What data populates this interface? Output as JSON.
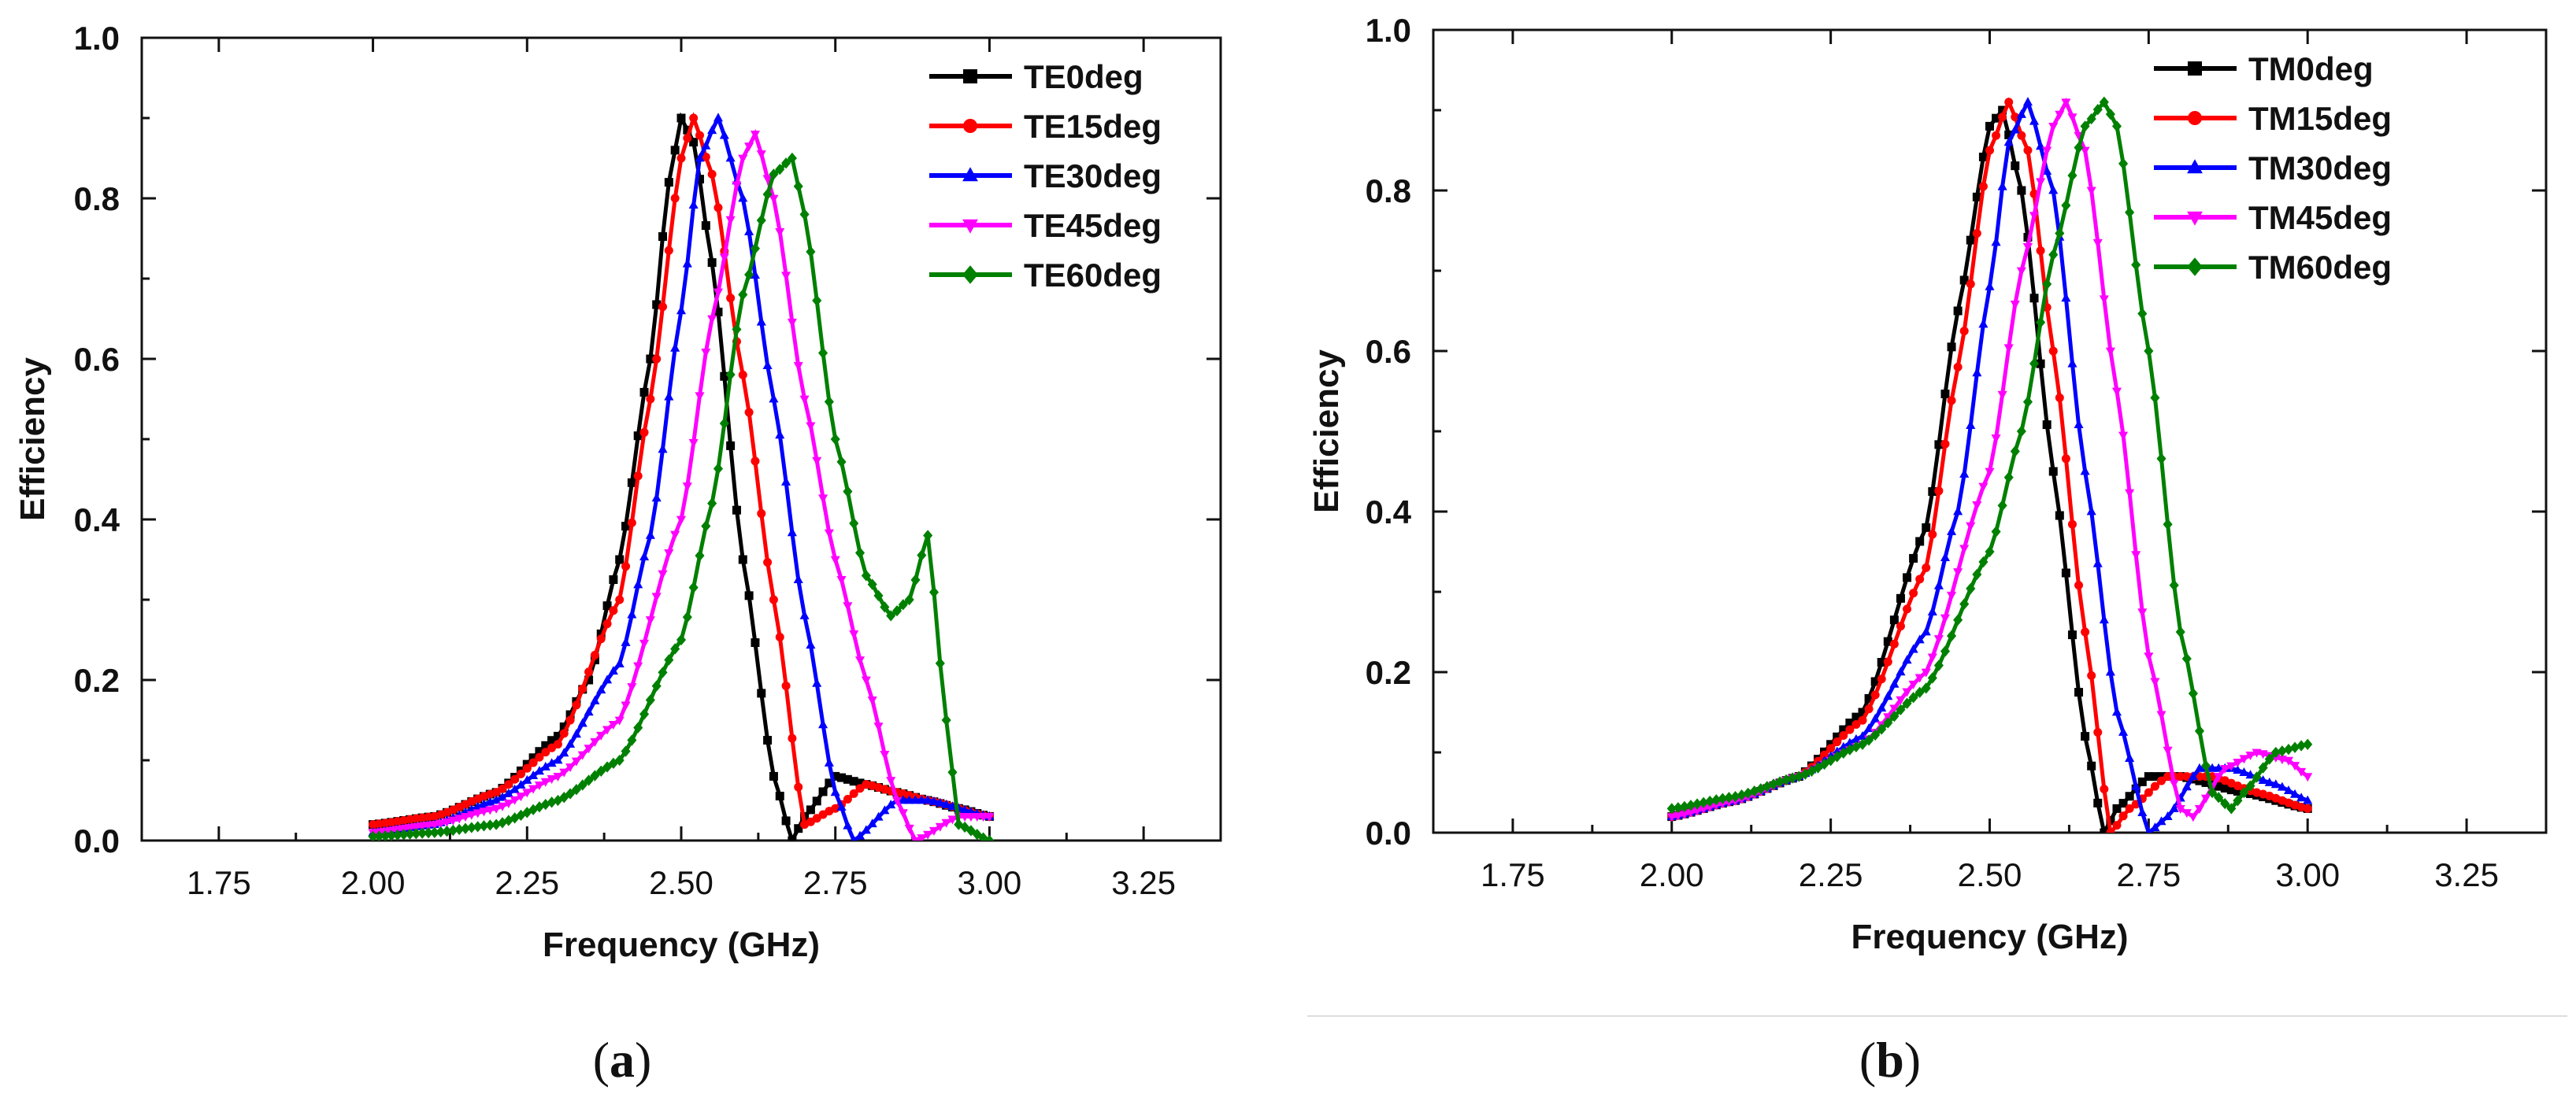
{
  "colors": {
    "c0": "#000000",
    "c15": "#ff0000",
    "c30": "#0000ff",
    "c45": "#ff00ff",
    "c60": "#008000"
  },
  "captions": {
    "a": "a",
    "b": "b"
  },
  "chart_data": [
    {
      "type": "line",
      "panel": "a",
      "title": "",
      "xlabel": "Frequency (GHz)",
      "ylabel": "Efficiency",
      "xlim": [
        1.625,
        3.375
      ],
      "ylim": [
        0,
        1.0
      ],
      "xticks": [
        "1.75",
        "2.00",
        "2.25",
        "2.50",
        "2.75",
        "3.00",
        "3.25"
      ],
      "yticks": [
        "0.0",
        "0.2",
        "0.4",
        "0.6",
        "0.8",
        "1.0"
      ],
      "legend_position": "top-right",
      "series": [
        {
          "name": "TE0deg",
          "color": "#000000",
          "marker": "square",
          "x": [
            2.0,
            2.1,
            2.2,
            2.3,
            2.35,
            2.4,
            2.45,
            2.48,
            2.5,
            2.52,
            2.55,
            2.6,
            2.65,
            2.68,
            2.7,
            2.75,
            2.8,
            2.85,
            2.9,
            2.95,
            3.0
          ],
          "y": [
            0.02,
            0.03,
            0.06,
            0.13,
            0.2,
            0.35,
            0.6,
            0.82,
            0.9,
            0.87,
            0.72,
            0.35,
            0.08,
            0.0,
            0.03,
            0.08,
            0.07,
            0.06,
            0.05,
            0.04,
            0.03
          ]
        },
        {
          "name": "TE15deg",
          "color": "#ff0000",
          "marker": "circle",
          "x": [
            2.0,
            2.1,
            2.2,
            2.3,
            2.4,
            2.45,
            2.5,
            2.52,
            2.55,
            2.6,
            2.65,
            2.7,
            2.75,
            2.8,
            2.85,
            2.9,
            3.0
          ],
          "y": [
            0.02,
            0.03,
            0.06,
            0.12,
            0.3,
            0.55,
            0.85,
            0.9,
            0.83,
            0.58,
            0.3,
            0.02,
            0.04,
            0.07,
            0.06,
            0.05,
            0.03
          ]
        },
        {
          "name": "TE30deg",
          "color": "#0000ff",
          "marker": "triangle-up",
          "x": [
            2.0,
            2.1,
            2.2,
            2.3,
            2.4,
            2.45,
            2.5,
            2.53,
            2.56,
            2.6,
            2.65,
            2.7,
            2.75,
            2.78,
            2.85,
            2.9,
            3.0
          ],
          "y": [
            0.01,
            0.02,
            0.05,
            0.1,
            0.22,
            0.38,
            0.66,
            0.85,
            0.9,
            0.8,
            0.55,
            0.28,
            0.06,
            0.0,
            0.05,
            0.05,
            0.03
          ]
        },
        {
          "name": "TE45deg",
          "color": "#ff00ff",
          "marker": "triangle-down",
          "x": [
            2.0,
            2.1,
            2.2,
            2.3,
            2.4,
            2.5,
            2.55,
            2.6,
            2.62,
            2.65,
            2.7,
            2.75,
            2.8,
            2.85,
            2.88,
            2.95,
            3.0
          ],
          "y": [
            0.01,
            0.02,
            0.04,
            0.08,
            0.15,
            0.4,
            0.65,
            0.85,
            0.88,
            0.8,
            0.55,
            0.35,
            0.2,
            0.05,
            0.0,
            0.03,
            0.03
          ]
        },
        {
          "name": "TE60deg",
          "color": "#008000",
          "marker": "diamond",
          "x": [
            2.0,
            2.1,
            2.2,
            2.3,
            2.4,
            2.5,
            2.55,
            2.6,
            2.65,
            2.68,
            2.7,
            2.75,
            2.8,
            2.84,
            2.87,
            2.9,
            2.93,
            2.95,
            3.0
          ],
          "y": [
            0.005,
            0.01,
            0.02,
            0.05,
            0.1,
            0.25,
            0.42,
            0.68,
            0.83,
            0.85,
            0.78,
            0.5,
            0.33,
            0.28,
            0.3,
            0.38,
            0.15,
            0.02,
            0.0
          ]
        }
      ]
    },
    {
      "type": "line",
      "panel": "b",
      "title": "",
      "xlabel": "Frequency (GHz)",
      "ylabel": "Efficiency",
      "xlim": [
        1.625,
        3.375
      ],
      "ylim": [
        0,
        1.0
      ],
      "xticks": [
        "1.75",
        "2.00",
        "2.25",
        "2.50",
        "2.75",
        "3.00",
        "3.25"
      ],
      "yticks": [
        "0.0",
        "0.2",
        "0.4",
        "0.6",
        "0.8",
        "1.0"
      ],
      "legend_position": "top-right",
      "series": [
        {
          "name": "TM0deg",
          "color": "#000000",
          "marker": "square",
          "x": [
            2.0,
            2.1,
            2.2,
            2.3,
            2.4,
            2.45,
            2.5,
            2.52,
            2.55,
            2.6,
            2.65,
            2.68,
            2.7,
            2.75,
            2.8,
            2.9,
            3.0
          ],
          "y": [
            0.02,
            0.04,
            0.07,
            0.15,
            0.38,
            0.65,
            0.88,
            0.9,
            0.8,
            0.45,
            0.12,
            0.0,
            0.03,
            0.07,
            0.07,
            0.05,
            0.03
          ]
        },
        {
          "name": "TM15deg",
          "color": "#ff0000",
          "marker": "circle",
          "x": [
            2.0,
            2.1,
            2.2,
            2.3,
            2.4,
            2.45,
            2.5,
            2.53,
            2.56,
            2.6,
            2.65,
            2.69,
            2.72,
            2.78,
            2.85,
            2.92,
            3.0
          ],
          "y": [
            0.02,
            0.04,
            0.07,
            0.14,
            0.33,
            0.58,
            0.85,
            0.91,
            0.85,
            0.6,
            0.25,
            0.0,
            0.03,
            0.07,
            0.07,
            0.05,
            0.03
          ]
        },
        {
          "name": "TM30deg",
          "color": "#0000ff",
          "marker": "triangle-up",
          "x": [
            2.0,
            2.1,
            2.2,
            2.3,
            2.4,
            2.45,
            2.5,
            2.53,
            2.56,
            2.6,
            2.65,
            2.7,
            2.75,
            2.78,
            2.83,
            2.88,
            2.95,
            3.0
          ],
          "y": [
            0.02,
            0.04,
            0.07,
            0.12,
            0.25,
            0.4,
            0.68,
            0.86,
            0.91,
            0.8,
            0.45,
            0.15,
            0.0,
            0.02,
            0.08,
            0.08,
            0.06,
            0.04
          ]
        },
        {
          "name": "TM45deg",
          "color": "#ff00ff",
          "marker": "triangle-down",
          "x": [
            2.0,
            2.1,
            2.2,
            2.3,
            2.4,
            2.5,
            2.55,
            2.6,
            2.62,
            2.65,
            2.7,
            2.75,
            2.8,
            2.82,
            2.87,
            2.92,
            2.97,
            3.0
          ],
          "y": [
            0.02,
            0.04,
            0.07,
            0.11,
            0.2,
            0.45,
            0.7,
            0.88,
            0.91,
            0.85,
            0.55,
            0.22,
            0.03,
            0.02,
            0.08,
            0.1,
            0.09,
            0.07
          ]
        },
        {
          "name": "TM60deg",
          "color": "#008000",
          "marker": "diamond",
          "x": [
            2.0,
            2.1,
            2.2,
            2.3,
            2.4,
            2.5,
            2.55,
            2.6,
            2.65,
            2.68,
            2.7,
            2.75,
            2.8,
            2.85,
            2.88,
            2.9,
            2.95,
            3.0
          ],
          "y": [
            0.03,
            0.045,
            0.07,
            0.11,
            0.18,
            0.35,
            0.5,
            0.72,
            0.88,
            0.91,
            0.88,
            0.6,
            0.25,
            0.05,
            0.03,
            0.05,
            0.1,
            0.11
          ]
        }
      ]
    }
  ]
}
